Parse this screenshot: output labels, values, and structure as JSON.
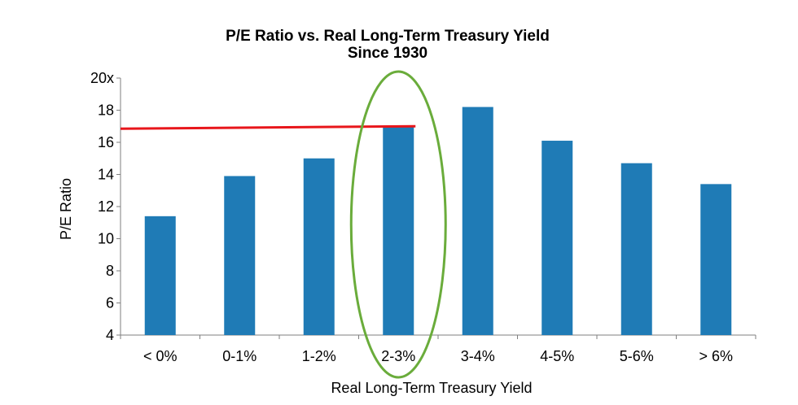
{
  "chart_data": {
    "type": "bar",
    "title": "P/E Ratio vs. Real Long-Term Treasury Yield",
    "subtitle": "Since 1930",
    "xlabel": "Real Long-Term Treasury Yield",
    "ylabel": "P/E Ratio",
    "categories": [
      "< 0%",
      "0-1%",
      "1-2%",
      "2-3%",
      "3-4%",
      "4-5%",
      "5-6%",
      "> 6%"
    ],
    "values": [
      11.4,
      13.9,
      15.0,
      17.0,
      18.2,
      16.1,
      14.7,
      13.4
    ],
    "ylim": [
      4,
      20
    ],
    "yticks": [
      4,
      6,
      8,
      10,
      12,
      14,
      16,
      18,
      20
    ],
    "ytick_labels": [
      "4",
      "6",
      "8",
      "10",
      "12",
      "14",
      "16",
      "18",
      "20x"
    ],
    "grid": false,
    "legend": "none",
    "bar_color": "#1f7bb6",
    "reference_line": {
      "value_start": 16.85,
      "value_end": 17.0,
      "from_category": "< 0%",
      "to_category": "2-3%",
      "color": "#e8161b"
    },
    "highlight": {
      "category": "2-3%",
      "shape": "ellipse",
      "color": "#6aac3b"
    }
  }
}
